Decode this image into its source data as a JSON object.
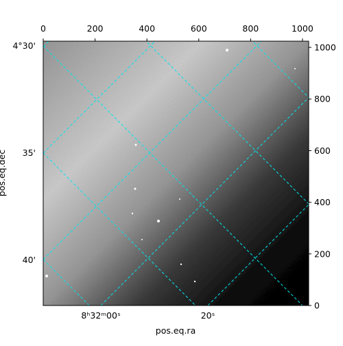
{
  "chart_data": {
    "type": "image",
    "x_label": "pos.eq.ra",
    "y_label": "pos.eq.dec",
    "dec_tick_labels": [
      "4°30'",
      "35'",
      "40'"
    ],
    "ra_tick_labels": [
      "8ʰ32ᵐ00ˢ",
      "20ˢ"
    ],
    "xlim": [
      0,
      1024
    ],
    "ylim": [
      0,
      1024
    ],
    "xticks": [
      0,
      200,
      400,
      600,
      800,
      1000
    ],
    "yticks": [
      0,
      200,
      400,
      600,
      800,
      1000
    ],
    "grid_color": "#00e5ee"
  }
}
